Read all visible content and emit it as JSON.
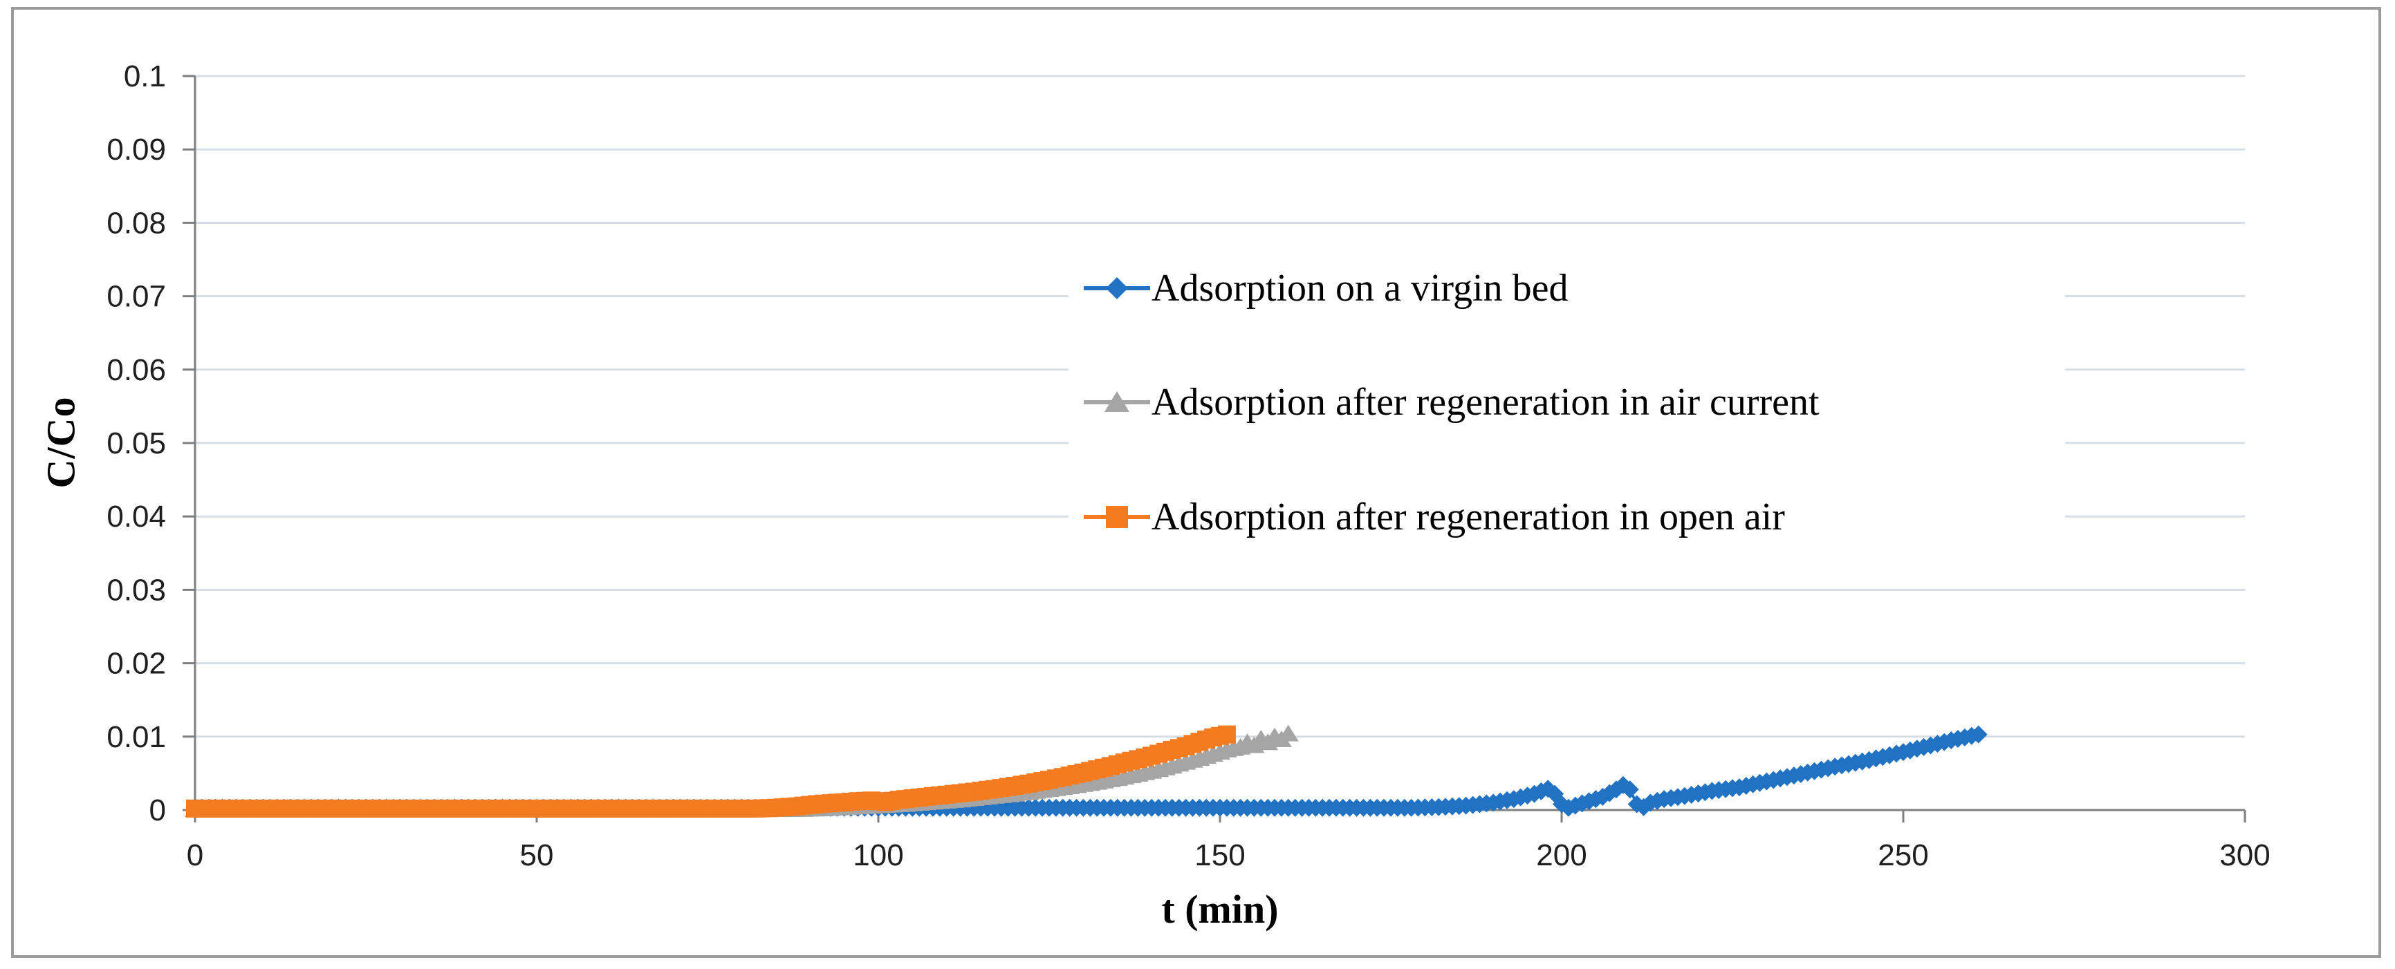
{
  "figure": {
    "background": "#ffffff",
    "border_color": "#9b9b9b"
  },
  "chart_data": {
    "type": "line",
    "title": "",
    "xlabel": "t (min)",
    "ylabel": "C/Co",
    "xlim": [
      0,
      300
    ],
    "ylim": [
      0,
      0.1
    ],
    "grid": "horizontal",
    "gridline_color": "#d7dde7",
    "axis_color": "#7f7f7f",
    "tick_label_color": "#1f1f1f",
    "legend_position": "center-right-overlay",
    "x_axis": {
      "tick_values": [
        0,
        50,
        100,
        150,
        200,
        250,
        300
      ],
      "tick_labels": [
        "0",
        "50",
        "100",
        "150",
        "200",
        "250",
        "300"
      ]
    },
    "y_axis": {
      "tick_values": [
        0,
        0.01,
        0.02,
        0.03,
        0.04,
        0.05,
        0.06,
        0.07,
        0.08,
        0.09,
        0.1
      ],
      "tick_labels": [
        "0",
        "0.01",
        "0.02",
        "0.03",
        "0.04",
        "0.05",
        "0.06",
        "0.07",
        "0.08",
        "0.09",
        "0.1"
      ]
    },
    "marker_every_min": 1,
    "series": [
      {
        "name": "Adsorption on a virgin bed",
        "color": "#2272C3",
        "marker": "diamond",
        "points": [
          [
            0,
            0.0003
          ],
          [
            178,
            0.0003
          ],
          [
            182,
            0.0004
          ],
          [
            186,
            0.0006
          ],
          [
            190,
            0.001
          ],
          [
            193,
            0.0015
          ],
          [
            196,
            0.0022
          ],
          [
            198,
            0.0029
          ],
          [
            199,
            0.0022
          ],
          [
            200,
            0.0008
          ],
          [
            201,
            0.0003
          ],
          [
            202,
            0.0006
          ],
          [
            204,
            0.0012
          ],
          [
            206,
            0.0018
          ],
          [
            208,
            0.0028
          ],
          [
            209,
            0.0034
          ],
          [
            210,
            0.0028
          ],
          [
            211,
            0.0008
          ],
          [
            212,
            0.0004
          ],
          [
            213,
            0.001
          ],
          [
            215,
            0.0015
          ],
          [
            218,
            0.0019
          ],
          [
            222,
            0.0026
          ],
          [
            226,
            0.0031
          ],
          [
            230,
            0.0039
          ],
          [
            235,
            0.0049
          ],
          [
            240,
            0.0059
          ],
          [
            245,
            0.0068
          ],
          [
            250,
            0.0079
          ],
          [
            254,
            0.0088
          ],
          [
            257,
            0.0095
          ],
          [
            259,
            0.0099
          ],
          [
            261,
            0.0103
          ]
        ]
      },
      {
        "name": "Adsorption after regeneration in air current",
        "color": "#A5A5A5",
        "marker": "triangle",
        "points": [
          [
            0,
            0.0001
          ],
          [
            88,
            0.0001
          ],
          [
            92,
            0.0002
          ],
          [
            96,
            0.0004
          ],
          [
            100,
            0.0006
          ],
          [
            104,
            0.0008
          ],
          [
            108,
            0.0011
          ],
          [
            112,
            0.0014
          ],
          [
            116,
            0.0018
          ],
          [
            120,
            0.0022
          ],
          [
            124,
            0.0027
          ],
          [
            128,
            0.0032
          ],
          [
            132,
            0.0038
          ],
          [
            136,
            0.0045
          ],
          [
            140,
            0.0053
          ],
          [
            143,
            0.006
          ],
          [
            146,
            0.0068
          ],
          [
            149,
            0.0076
          ],
          [
            151,
            0.0082
          ],
          [
            153,
            0.0086
          ],
          [
            154,
            0.0092
          ],
          [
            155,
            0.0088
          ],
          [
            156,
            0.0097
          ],
          [
            157,
            0.0092
          ],
          [
            158,
            0.01
          ],
          [
            159,
            0.0096
          ],
          [
            160,
            0.0104
          ]
        ]
      },
      {
        "name": "Adsorption after regeneration in open air",
        "color": "#F57B20",
        "marker": "square",
        "points": [
          [
            0,
            0.0002
          ],
          [
            82,
            0.0002
          ],
          [
            85,
            0.0003
          ],
          [
            88,
            0.0005
          ],
          [
            91,
            0.0008
          ],
          [
            94,
            0.001
          ],
          [
            97,
            0.0012
          ],
          [
            99,
            0.0013
          ],
          [
            101,
            0.0011
          ],
          [
            103,
            0.0014
          ],
          [
            106,
            0.0017
          ],
          [
            110,
            0.0021
          ],
          [
            114,
            0.0025
          ],
          [
            118,
            0.003
          ],
          [
            122,
            0.0036
          ],
          [
            126,
            0.0043
          ],
          [
            130,
            0.0051
          ],
          [
            134,
            0.006
          ],
          [
            137,
            0.0067
          ],
          [
            140,
            0.0074
          ],
          [
            143,
            0.0082
          ],
          [
            145,
            0.0087
          ],
          [
            147,
            0.0093
          ],
          [
            149,
            0.0099
          ],
          [
            151,
            0.0103
          ]
        ]
      }
    ]
  }
}
